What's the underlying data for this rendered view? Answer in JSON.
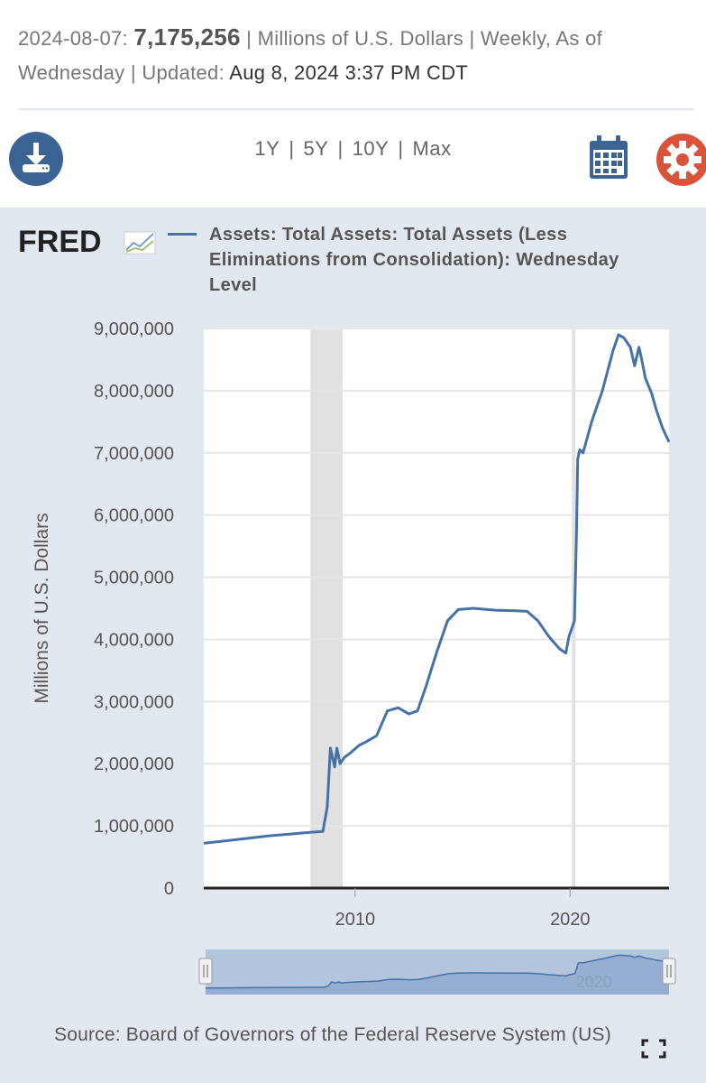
{
  "header": {
    "date": "2024-08-07:",
    "value": "7,175,256",
    "units_text": "| Millions of U.S. Dollars | Weekly, As of Wednesday | Updated:",
    "updated": "Aug 8, 2024 3:37 PM CDT"
  },
  "toolbar": {
    "ranges": [
      "1Y",
      "5Y",
      "10Y",
      "Max"
    ],
    "download_icon": "download-icon",
    "calendar_icon": "calendar-icon",
    "settings_icon": "gear-icon",
    "settings_color": "#d9533b",
    "icon_color": "#3b6494"
  },
  "logo": {
    "text": "FRED"
  },
  "source": "Source: Board of Governors of the Federal Reserve System (US)",
  "chart_data": {
    "type": "line",
    "legend": "Assets: Total Assets: Total Assets (Less Eliminations from Consolidation): Wednesday Level",
    "ylabel": "Millions of U.S. Dollars",
    "ylim": [
      0,
      9000000
    ],
    "yticks": [
      0,
      1000000,
      2000000,
      3000000,
      4000000,
      5000000,
      6000000,
      7000000,
      8000000,
      9000000
    ],
    "ytick_labels": [
      "0",
      "1,000,000",
      "2,000,000",
      "3,000,000",
      "4,000,000",
      "5,000,000",
      "6,000,000",
      "7,000,000",
      "8,000,000",
      "9,000,000"
    ],
    "xlim": [
      2002.96,
      2024.6
    ],
    "xticks": [
      2010,
      2020
    ],
    "xtick_labels": [
      "2010",
      "2020"
    ],
    "recessions": [
      [
        2007.92,
        2009.42
      ],
      [
        2020.08,
        2020.25
      ]
    ],
    "line_color": "#4572a7",
    "series": [
      {
        "x": [
          2002.96,
          2004.0,
          2005.0,
          2006.0,
          2007.0,
          2007.9,
          2008.5,
          2008.7,
          2008.85,
          2008.95,
          2009.05,
          2009.15,
          2009.3,
          2009.5,
          2009.8,
          2010.2,
          2010.5,
          2011.0,
          2011.5,
          2012.0,
          2012.5,
          2012.9,
          2013.3,
          2013.8,
          2014.3,
          2014.8,
          2015.5,
          2016.5,
          2017.5,
          2018.0,
          2018.5,
          2019.0,
          2019.5,
          2019.8,
          2019.95,
          2020.1,
          2020.2,
          2020.3,
          2020.35,
          2020.45,
          2020.6,
          2020.8,
          2021.0,
          2021.5,
          2022.0,
          2022.25,
          2022.5,
          2022.8,
          2023.0,
          2023.2,
          2023.3,
          2023.5,
          2023.8,
          2024.0,
          2024.3,
          2024.6
        ],
        "y": [
          720000,
          760000,
          800000,
          840000,
          870000,
          895000,
          910000,
          1300000,
          2250000,
          2100000,
          1950000,
          2250000,
          2000000,
          2100000,
          2180000,
          2300000,
          2350000,
          2450000,
          2850000,
          2900000,
          2800000,
          2850000,
          3250000,
          3800000,
          4300000,
          4480000,
          4500000,
          4470000,
          4460000,
          4450000,
          4300000,
          4050000,
          3850000,
          3780000,
          4050000,
          4200000,
          4300000,
          5800000,
          6900000,
          7050000,
          7000000,
          7250000,
          7500000,
          8000000,
          8650000,
          8900000,
          8850000,
          8700000,
          8400000,
          8700000,
          8550000,
          8200000,
          7950000,
          7700000,
          7400000,
          7175256
        ]
      }
    ],
    "navigator": {
      "xtick_labels": [
        "2020"
      ]
    }
  }
}
